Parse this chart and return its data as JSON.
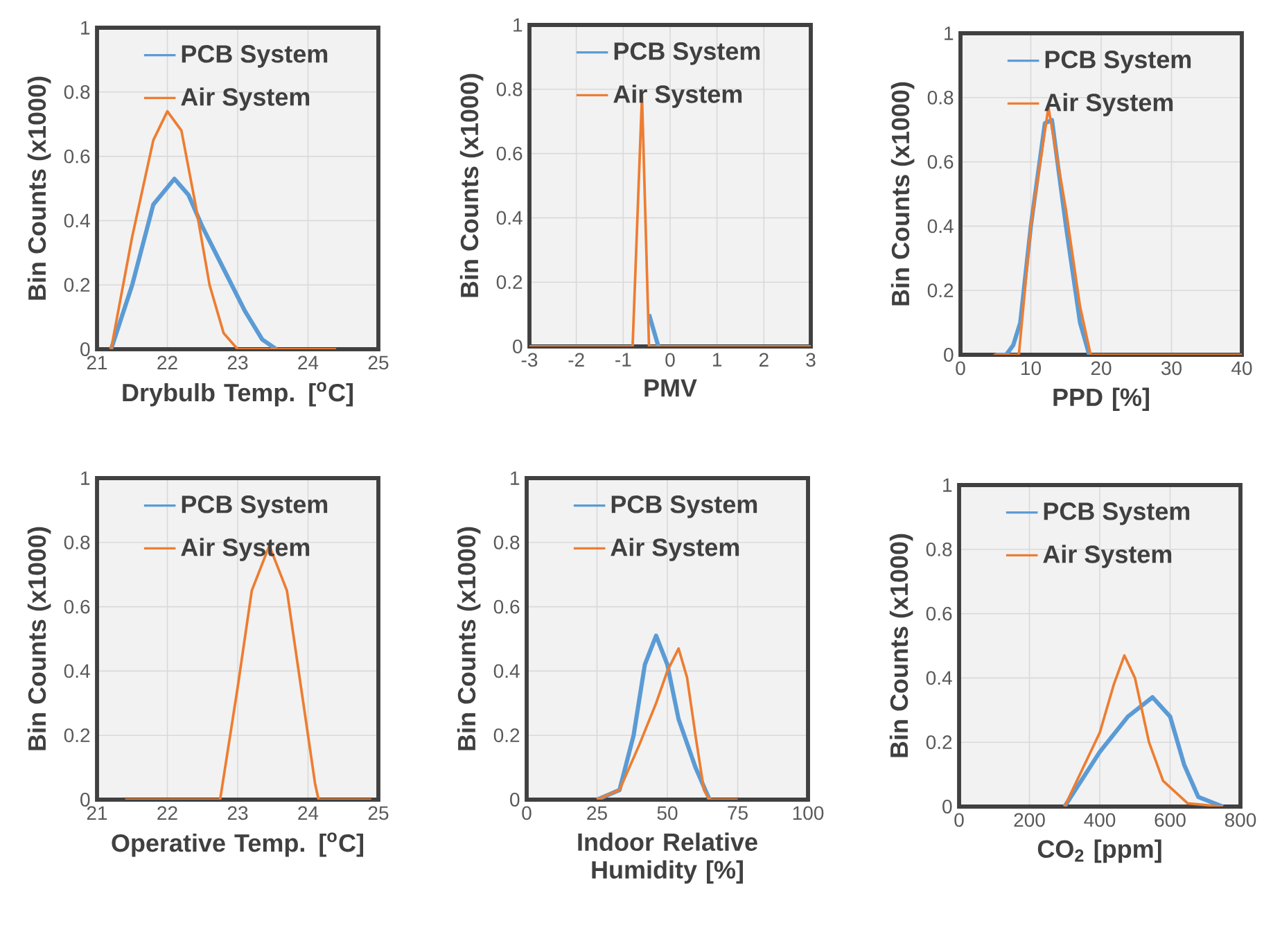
{
  "chart_data": [
    {
      "type": "line",
      "xlabel": "Drybulb Temp. [$^{o}$C]",
      "ylabel": "Bin Counts (x1000)",
      "xlim": [
        21,
        25
      ],
      "xticks": [
        21,
        22,
        23,
        24,
        25
      ],
      "ylim": [
        0,
        1
      ],
      "yticks": [
        0,
        0.2,
        0.4,
        0.6,
        0.8,
        1
      ],
      "grid": true,
      "legend": "top",
      "marker": "none",
      "line_style": "solid",
      "series": [
        {
          "name": "PCB System",
          "color": "#5b9bd5",
          "x": [
            21.2,
            21.5,
            21.8,
            22.1,
            22.3,
            22.5,
            22.8,
            23.1,
            23.35,
            23.55
          ],
          "values": [
            0,
            0.2,
            0.45,
            0.53,
            0.48,
            0.38,
            0.25,
            0.12,
            0.03,
            0
          ]
        },
        {
          "name": "Air System",
          "color": "#ed7d31",
          "x": [
            21.2,
            21.5,
            21.8,
            22.0,
            22.2,
            22.4,
            22.6,
            22.8,
            23.0,
            24.4
          ],
          "values": [
            0,
            0.35,
            0.65,
            0.74,
            0.68,
            0.45,
            0.2,
            0.05,
            0,
            0
          ]
        }
      ]
    },
    {
      "type": "line",
      "xlabel": "PMV",
      "ylabel": "Bin Counts (x1000)",
      "xlim": [
        -3,
        3
      ],
      "xticks": [
        -3,
        -2,
        -1,
        0,
        1,
        2,
        3
      ],
      "ylim": [
        0,
        1
      ],
      "yticks": [
        0,
        0.2,
        0.4,
        0.6,
        0.8,
        1
      ],
      "grid": true,
      "legend": "top",
      "marker": "none",
      "line_style": "solid",
      "series": [
        {
          "name": "PCB System",
          "color": "#5b9bd5",
          "x": [
            -0.45,
            -0.25
          ],
          "values": [
            0.1,
            0
          ]
        },
        {
          "name": "Air System",
          "color": "#ed7d31",
          "x": [
            -3,
            -0.8,
            -0.6,
            -0.45,
            3
          ],
          "values": [
            0,
            0,
            0.78,
            0,
            0
          ]
        }
      ]
    },
    {
      "type": "line",
      "xlabel": "PPD [%]",
      "ylabel": "Bin Counts (x1000)",
      "xlim": [
        0,
        40
      ],
      "xticks": [
        0,
        10,
        20,
        30,
        40
      ],
      "ylim": [
        0,
        1
      ],
      "yticks": [
        0,
        0.2,
        0.4,
        0.6,
        0.8,
        1
      ],
      "grid": true,
      "legend": "top",
      "marker": "none",
      "line_style": "solid",
      "series": [
        {
          "name": "PCB System",
          "color": "#5b9bd5",
          "x": [
            5,
            6.5,
            7.5,
            8.5,
            10,
            12,
            13,
            15,
            17,
            18.3
          ],
          "values": [
            0,
            0,
            0.03,
            0.1,
            0.4,
            0.72,
            0.73,
            0.4,
            0.1,
            0
          ]
        },
        {
          "name": "Air System",
          "color": "#ed7d31",
          "x": [
            4.7,
            8.3,
            10,
            12.5,
            15,
            17,
            18.5,
            40
          ],
          "values": [
            0,
            0,
            0.4,
            0.77,
            0.45,
            0.15,
            0,
            0
          ]
        }
      ]
    },
    {
      "type": "line",
      "xlabel": "Operative Temp. [$^{o}$C]",
      "ylabel": "Bin Counts (x1000)",
      "xlim": [
        21,
        25
      ],
      "xticks": [
        21,
        22,
        23,
        24,
        25
      ],
      "ylim": [
        0,
        1
      ],
      "yticks": [
        0,
        0.2,
        0.4,
        0.6,
        0.8,
        1
      ],
      "grid": true,
      "legend": "top",
      "marker": "none",
      "line_style": "solid",
      "series": [
        {
          "name": "PCB System",
          "color": "#5b9bd5"
        },
        {
          "name": "Air System",
          "color": "#ed7d31",
          "x": [
            21.4,
            22.75,
            23.0,
            23.2,
            23.45,
            23.7,
            23.9,
            24.1,
            24.15,
            24.9
          ],
          "values": [
            0,
            0,
            0.35,
            0.65,
            0.79,
            0.65,
            0.35,
            0.05,
            0,
            0
          ]
        }
      ]
    },
    {
      "type": "line",
      "xlabel": "Indoor Relative Humidity [%]",
      "ylabel": "Bin Counts (x1000)",
      "xlim": [
        0,
        100
      ],
      "xticks": [
        0,
        25,
        50,
        75,
        100
      ],
      "ylim": [
        0,
        1
      ],
      "yticks": [
        0,
        0.2,
        0.4,
        0.6,
        0.8,
        1
      ],
      "grid": true,
      "legend": "top",
      "marker": "none",
      "line_style": "solid",
      "series": [
        {
          "name": "PCB System",
          "color": "#5b9bd5",
          "x": [
            25,
            33,
            38,
            42,
            46,
            50,
            54,
            60,
            65
          ],
          "values": [
            0,
            0.03,
            0.2,
            0.42,
            0.51,
            0.42,
            0.25,
            0.1,
            0
          ]
        },
        {
          "name": "Air System",
          "color": "#ed7d31",
          "x": [
            25,
            33,
            40,
            46,
            50,
            54,
            57,
            60,
            63,
            65,
            75
          ],
          "values": [
            0,
            0.03,
            0.17,
            0.3,
            0.4,
            0.47,
            0.38,
            0.2,
            0.03,
            0,
            0
          ]
        }
      ]
    },
    {
      "type": "line",
      "xlabel": "CO$_{2}$ [ppm]",
      "ylabel": "Bin Counts (x1000)",
      "xlim": [
        0,
        800
      ],
      "xticks": [
        0,
        200,
        400,
        600,
        800
      ],
      "ylim": [
        0,
        1
      ],
      "yticks": [
        0,
        0.2,
        0.4,
        0.6,
        0.8,
        1
      ],
      "grid": true,
      "legend": "top",
      "marker": "none",
      "line_style": "solid",
      "series": [
        {
          "name": "PCB System",
          "color": "#5b9bd5",
          "x": [
            300,
            400,
            480,
            550,
            600,
            640,
            680,
            750
          ],
          "values": [
            0,
            0.17,
            0.28,
            0.34,
            0.28,
            0.13,
            0.03,
            0
          ]
        },
        {
          "name": "Air System",
          "color": "#ed7d31",
          "x": [
            300,
            400,
            440,
            470,
            500,
            540,
            580,
            650,
            750
          ],
          "values": [
            0,
            0.23,
            0.38,
            0.47,
            0.4,
            0.2,
            0.08,
            0.01,
            0
          ]
        }
      ]
    }
  ]
}
